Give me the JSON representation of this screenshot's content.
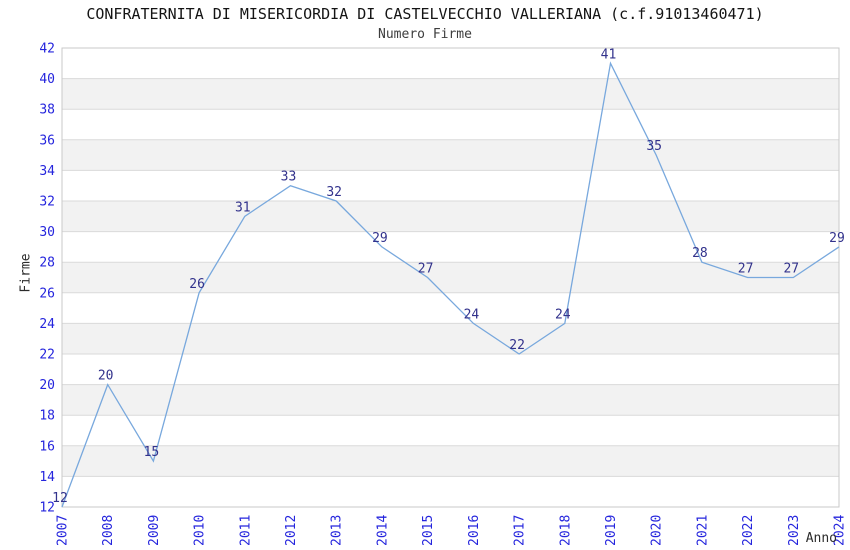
{
  "page": {
    "background": "#ffffff"
  },
  "chart_data": {
    "type": "line",
    "title": "CONFRATERNITA DI MISERICORDIA DI CASTELVECCHIO VALLERIANA (c.f.91013460471)",
    "subtitle": "Numero Firme",
    "xlabel": "Anno",
    "ylabel": "Firme",
    "categories": [
      "2007",
      "2008",
      "2009",
      "2010",
      "2011",
      "2012",
      "2013",
      "2014",
      "2015",
      "2016",
      "2017",
      "2018",
      "2019",
      "2020",
      "2021",
      "2022",
      "2023",
      "2024"
    ],
    "series": [
      {
        "name": "Numero Firme",
        "values": [
          12,
          20,
          15,
          26,
          31,
          33,
          32,
          29,
          27,
          24,
          22,
          24,
          41,
          35,
          28,
          27,
          27,
          29
        ]
      }
    ],
    "ylim": [
      12,
      42
    ],
    "ytick_step": 2,
    "yticks": [
      12,
      14,
      16,
      18,
      20,
      22,
      24,
      26,
      28,
      30,
      32,
      34,
      36,
      38,
      40,
      42
    ],
    "grid": "horizontal-bands-alternating",
    "data_labels_visible": true,
    "legend_position": "none",
    "colors": {
      "line": "#78a8dd",
      "data_label": "#32328c",
      "tick_label": "#2525dd",
      "band_gray": "#f2f2f2",
      "band_white": "#ffffff",
      "gridline": "#dadada",
      "plot_border": "#c9c9c9",
      "title": "#141414",
      "subtitle": "#3d3d3d",
      "axis_title": "#2b2b2b"
    }
  }
}
